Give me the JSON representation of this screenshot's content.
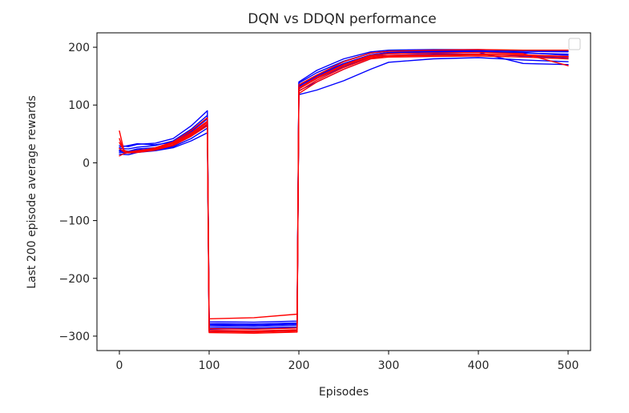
{
  "chart_data": {
    "type": "line",
    "title": "DQN vs DDQN performance",
    "xlabel": "Episodes",
    "ylabel": "Last 200 episode average rewards",
    "xlim": [
      -25,
      525
    ],
    "ylim": [
      -325,
      225
    ],
    "xticks": [
      0,
      100,
      200,
      300,
      400,
      500
    ],
    "yticks": [
      -300,
      -200,
      -100,
      0,
      100,
      200
    ],
    "grid": false,
    "legend": {
      "placement": "top-right",
      "entries": []
    },
    "series_groups": [
      {
        "color": "#0000ff",
        "runs": [
          [
            [
              0,
              22
            ],
            [
              10,
              20
            ],
            [
              20,
              24
            ],
            [
              40,
              26
            ],
            [
              60,
              34
            ],
            [
              80,
              50
            ],
            [
              98,
              70
            ],
            [
              100,
              -282
            ],
            [
              150,
              -283
            ],
            [
              198,
              -281
            ],
            [
              200,
              132
            ],
            [
              220,
              150
            ],
            [
              250,
              170
            ],
            [
              280,
              186
            ],
            [
              300,
              190
            ],
            [
              350,
              192
            ],
            [
              400,
              192
            ],
            [
              450,
              190
            ],
            [
              500,
              188
            ]
          ],
          [
            [
              0,
              18
            ],
            [
              10,
              17
            ],
            [
              20,
              20
            ],
            [
              40,
              22
            ],
            [
              60,
              28
            ],
            [
              80,
              42
            ],
            [
              98,
              60
            ],
            [
              100,
              -288
            ],
            [
              150,
              -287
            ],
            [
              198,
              -286
            ],
            [
              200,
              125
            ],
            [
              220,
              140
            ],
            [
              250,
              162
            ],
            [
              280,
              180
            ],
            [
              300,
              186
            ],
            [
              350,
              188
            ],
            [
              400,
              188
            ],
            [
              450,
              185
            ],
            [
              500,
              182
            ]
          ],
          [
            [
              0,
              25
            ],
            [
              10,
              24
            ],
            [
              20,
              27
            ],
            [
              40,
              30
            ],
            [
              60,
              38
            ],
            [
              80,
              58
            ],
            [
              98,
              82
            ],
            [
              100,
              -278
            ],
            [
              150,
              -279
            ],
            [
              198,
              -277
            ],
            [
              200,
              138
            ],
            [
              220,
              156
            ],
            [
              250,
              176
            ],
            [
              280,
              190
            ],
            [
              300,
              193
            ],
            [
              350,
              194
            ],
            [
              400,
              195
            ],
            [
              450,
              193
            ],
            [
              500,
              192
            ]
          ],
          [
            [
              0,
              15
            ],
            [
              10,
              14
            ],
            [
              20,
              18
            ],
            [
              40,
              21
            ],
            [
              60,
              26
            ],
            [
              80,
              38
            ],
            [
              98,
              52
            ],
            [
              100,
              -292
            ],
            [
              150,
              -291
            ],
            [
              198,
              -290
            ],
            [
              200,
              118
            ],
            [
              220,
              126
            ],
            [
              250,
              142
            ],
            [
              280,
              162
            ],
            [
              300,
              174
            ],
            [
              350,
              180
            ],
            [
              400,
              182
            ],
            [
              450,
              178
            ],
            [
              500,
              175
            ]
          ],
          [
            [
              0,
              30
            ],
            [
              10,
              28
            ],
            [
              20,
              32
            ],
            [
              40,
              34
            ],
            [
              60,
              42
            ],
            [
              80,
              64
            ],
            [
              98,
              90
            ],
            [
              100,
              -275
            ],
            [
              150,
              -276
            ],
            [
              198,
              -274
            ],
            [
              200,
              140
            ],
            [
              220,
              160
            ],
            [
              250,
              180
            ],
            [
              280,
              192
            ],
            [
              300,
              195
            ],
            [
              350,
              196
            ],
            [
              400,
              196
            ],
            [
              450,
              194
            ],
            [
              500,
              193
            ]
          ],
          [
            [
              0,
              20
            ],
            [
              10,
              19
            ],
            [
              20,
              22
            ],
            [
              40,
              24
            ],
            [
              60,
              30
            ],
            [
              80,
              46
            ],
            [
              98,
              66
            ],
            [
              100,
              -285
            ],
            [
              150,
              -286
            ],
            [
              198,
              -284
            ],
            [
              200,
              128
            ],
            [
              220,
              146
            ],
            [
              250,
              166
            ],
            [
              280,
              184
            ],
            [
              300,
              189
            ],
            [
              350,
              190
            ],
            [
              400,
              191
            ],
            [
              450,
              172
            ],
            [
              500,
              170
            ]
          ],
          [
            [
              0,
              27
            ],
            [
              10,
              30
            ],
            [
              20,
              33
            ],
            [
              40,
              31
            ],
            [
              60,
              36
            ],
            [
              80,
              54
            ],
            [
              98,
              76
            ],
            [
              100,
              -280
            ],
            [
              150,
              -281
            ],
            [
              198,
              -279
            ],
            [
              200,
              134
            ],
            [
              220,
              152
            ],
            [
              250,
              172
            ],
            [
              280,
              187
            ],
            [
              300,
              191
            ],
            [
              350,
              193
            ],
            [
              400,
              193
            ],
            [
              450,
              191
            ],
            [
              500,
              186
            ]
          ]
        ]
      },
      {
        "color": "#ff0000",
        "runs": [
          [
            [
              0,
              55
            ],
            [
              5,
              22
            ],
            [
              10,
              18
            ],
            [
              20,
              19
            ],
            [
              40,
              24
            ],
            [
              60,
              34
            ],
            [
              80,
              52
            ],
            [
              98,
              72
            ],
            [
              100,
              -290
            ],
            [
              150,
              -291
            ],
            [
              198,
              -289
            ],
            [
              200,
              128
            ],
            [
              220,
              146
            ],
            [
              250,
              168
            ],
            [
              280,
              184
            ],
            [
              300,
              186
            ],
            [
              350,
              187
            ],
            [
              400,
              188
            ],
            [
              450,
              187
            ],
            [
              500,
              184
            ]
          ],
          [
            [
              0,
              42
            ],
            [
              5,
              20
            ],
            [
              10,
              17
            ],
            [
              20,
              18
            ],
            [
              40,
              22
            ],
            [
              60,
              30
            ],
            [
              80,
              46
            ],
            [
              98,
              64
            ],
            [
              100,
              -294
            ],
            [
              150,
              -295
            ],
            [
              198,
              -293
            ],
            [
              200,
              120
            ],
            [
              220,
              140
            ],
            [
              250,
              162
            ],
            [
              280,
              180
            ],
            [
              300,
              183
            ],
            [
              350,
              184
            ],
            [
              400,
              185
            ],
            [
              450,
              183
            ],
            [
              500,
              180
            ]
          ],
          [
            [
              0,
              12
            ],
            [
              5,
              16
            ],
            [
              10,
              18
            ],
            [
              20,
              20
            ],
            [
              40,
              26
            ],
            [
              60,
              36
            ],
            [
              80,
              56
            ],
            [
              98,
              78
            ],
            [
              100,
              -270
            ],
            [
              150,
              -268
            ],
            [
              198,
              -262
            ],
            [
              200,
              135
            ],
            [
              220,
              152
            ],
            [
              250,
              175
            ],
            [
              280,
              190
            ],
            [
              300,
              193
            ],
            [
              350,
              195
            ],
            [
              400,
              196
            ],
            [
              450,
              195
            ],
            [
              500,
              195
            ]
          ],
          [
            [
              0,
              35
            ],
            [
              5,
              21
            ],
            [
              10,
              19
            ],
            [
              20,
              21
            ],
            [
              40,
              25
            ],
            [
              60,
              33
            ],
            [
              80,
              50
            ],
            [
              98,
              70
            ],
            [
              100,
              -287
            ],
            [
              150,
              -288
            ],
            [
              198,
              -286
            ],
            [
              200,
              130
            ],
            [
              220,
              148
            ],
            [
              250,
              170
            ],
            [
              280,
              186
            ],
            [
              300,
              189
            ],
            [
              350,
              190
            ],
            [
              400,
              191
            ],
            [
              450,
              189
            ],
            [
              500,
              168
            ]
          ],
          [
            [
              0,
              25
            ],
            [
              5,
              19
            ],
            [
              10,
              18
            ],
            [
              20,
              20
            ],
            [
              40,
              23
            ],
            [
              60,
              31
            ],
            [
              80,
              48
            ],
            [
              98,
              67
            ],
            [
              100,
              -292
            ],
            [
              150,
              -293
            ],
            [
              198,
              -291
            ],
            [
              200,
              124
            ],
            [
              220,
              143
            ],
            [
              250,
              165
            ],
            [
              280,
              182
            ],
            [
              300,
              185
            ],
            [
              350,
              186
            ],
            [
              400,
              187
            ],
            [
              450,
              186
            ],
            [
              500,
              183
            ]
          ]
        ]
      }
    ]
  }
}
